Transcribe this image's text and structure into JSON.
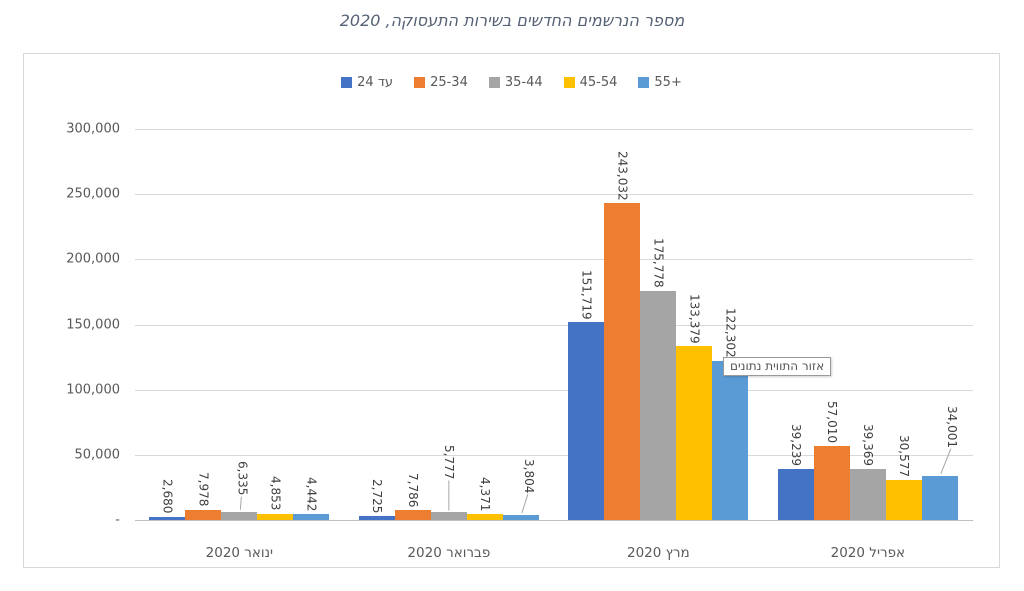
{
  "title": "מספר הנרשמים החדשים בשירות התעסוקה, 2020",
  "tooltip": {
    "label": "אזור התווית נתונים"
  },
  "chart_data": {
    "type": "bar",
    "title": "מספר הנרשמים החדשים בשירות התעסוקה, 2020",
    "categories": [
      "ינואר 2020",
      "פברואר 2020",
      "מרץ 2020",
      "אפריל 2020"
    ],
    "series": [
      {
        "name": "עד 24",
        "color": "#4472C4",
        "values": [
          2680,
          2725,
          151719,
          39239
        ]
      },
      {
        "name": "25-34",
        "color": "#ED7D31",
        "values": [
          7978,
          7786,
          243032,
          57010
        ]
      },
      {
        "name": "35-44",
        "color": "#A5A5A5",
        "values": [
          6335,
          5777,
          175778,
          39369
        ]
      },
      {
        "name": "45-54",
        "color": "#FFC000",
        "values": [
          4853,
          4371,
          133379,
          30577
        ]
      },
      {
        "name": "+55",
        "color": "#5B9BD5",
        "values": [
          4442,
          3804,
          122302,
          34001
        ]
      }
    ],
    "y_ticks": [
      "300,000",
      "250,000",
      "200,000",
      "150,000",
      "100,000",
      "50,000",
      "-"
    ],
    "ylim": [
      0,
      300000
    ],
    "grid": true,
    "legend_position": "top",
    "data_labels": true
  },
  "colors": {
    "gridline": "#D9D9D9",
    "axis_line": "#BFBFBF",
    "axis_text": "#595959",
    "label_text": "#3F3F3F",
    "title_text": "#546174",
    "leader_line": "#A6A6A6",
    "border": "#D8D8D8"
  }
}
